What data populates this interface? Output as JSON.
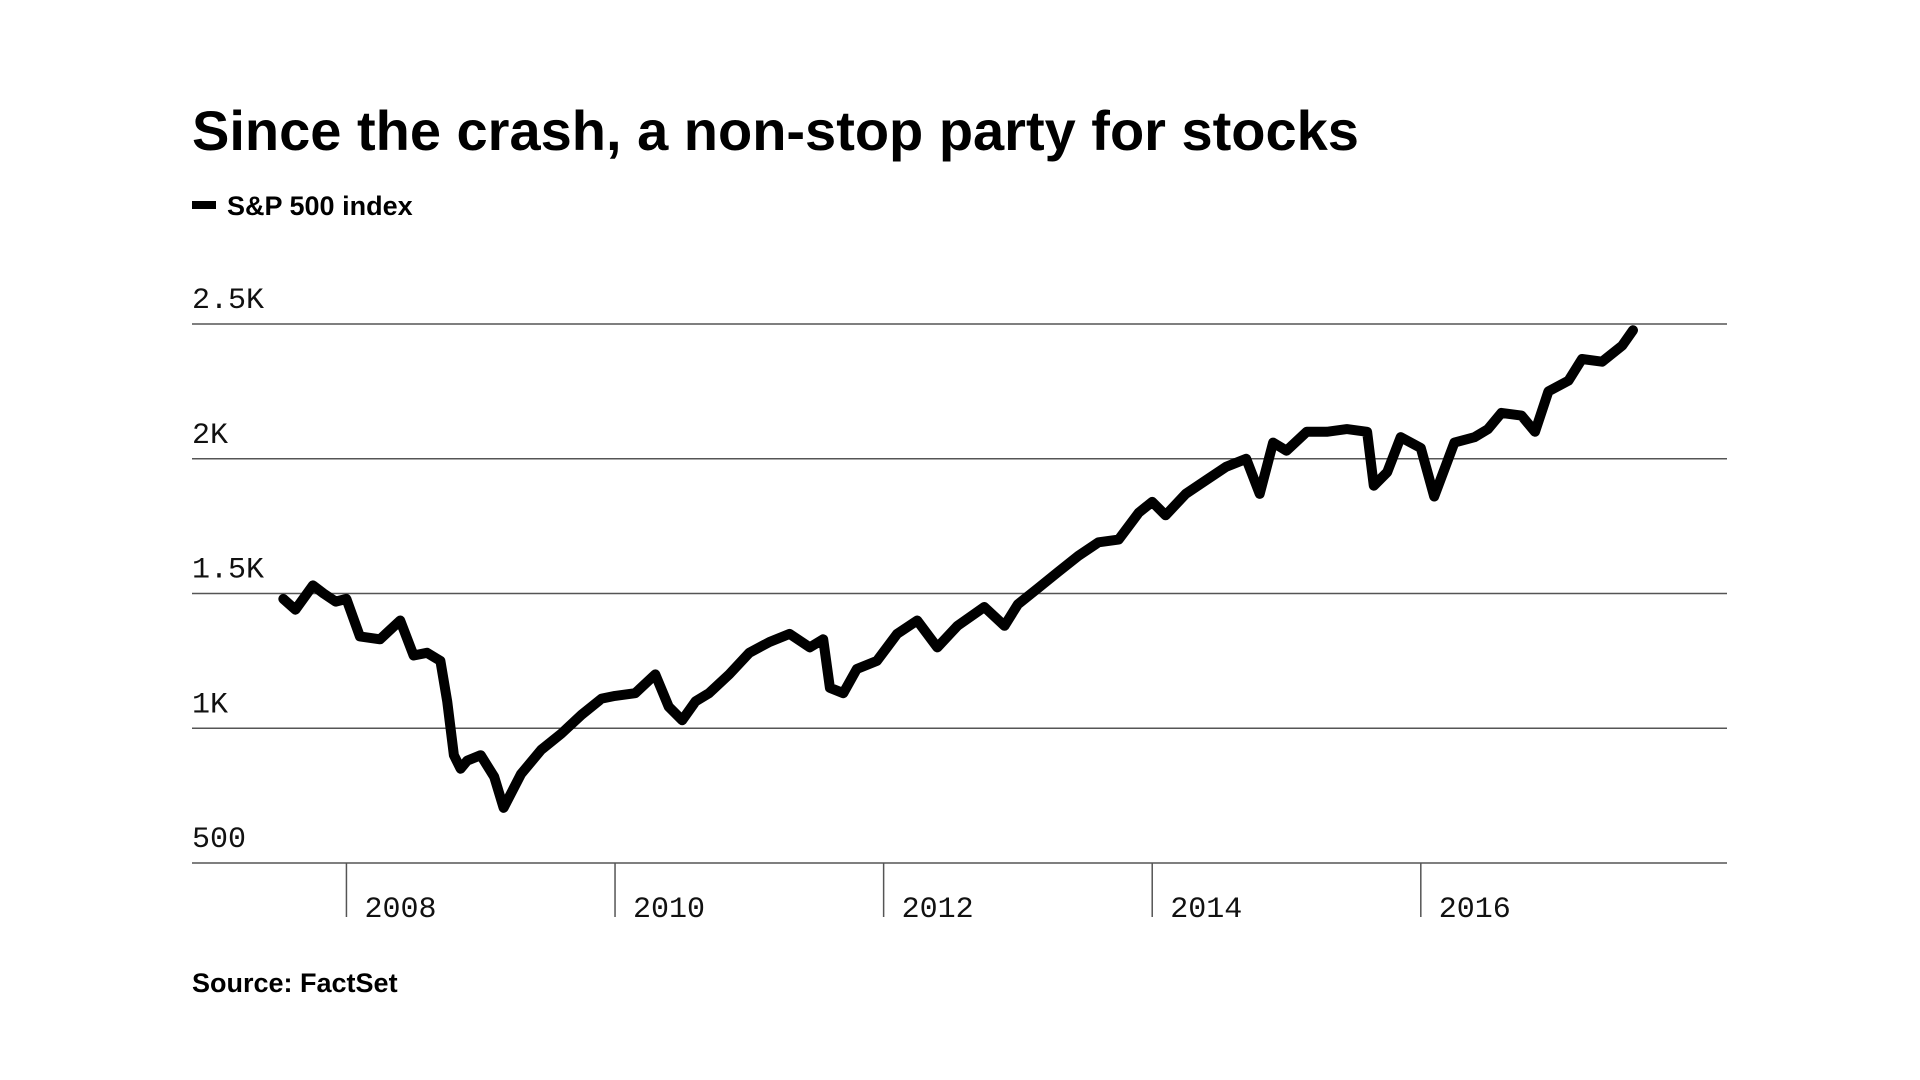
{
  "chart_data": {
    "type": "line",
    "title": "Since the crash, a non-stop party for stocks",
    "source": "Source: FactSet",
    "x": [
      2007.53,
      2007.62,
      2007.75,
      2007.83,
      2007.92,
      2008.0,
      2008.1,
      2008.25,
      2008.4,
      2008.5,
      2008.6,
      2008.7,
      2008.75,
      2008.8,
      2008.85,
      2008.9,
      2009.0,
      2009.1,
      2009.17,
      2009.3,
      2009.45,
      2009.6,
      2009.75,
      2009.9,
      2010.0,
      2010.15,
      2010.3,
      2010.4,
      2010.5,
      2010.6,
      2010.7,
      2010.85,
      2011.0,
      2011.15,
      2011.3,
      2011.45,
      2011.55,
      2011.6,
      2011.7,
      2011.8,
      2011.95,
      2012.1,
      2012.25,
      2012.4,
      2012.55,
      2012.75,
      2012.9,
      2013.0,
      2013.15,
      2013.3,
      2013.45,
      2013.6,
      2013.75,
      2013.9,
      2014.0,
      2014.1,
      2014.25,
      2014.4,
      2014.55,
      2014.7,
      2014.8,
      2014.9,
      2015.0,
      2015.15,
      2015.3,
      2015.45,
      2015.6,
      2015.65,
      2015.75,
      2015.85,
      2016.0,
      2016.1,
      2016.25,
      2016.4,
      2016.5,
      2016.6,
      2016.75,
      2016.85,
      2016.95,
      2017.1,
      2017.2,
      2017.35,
      2017.5,
      2017.58
    ],
    "series": [
      {
        "name": "S&P 500 index",
        "color": "#000000",
        "values": [
          1480,
          1440,
          1530,
          1500,
          1470,
          1480,
          1341,
          1330,
          1400,
          1270,
          1280,
          1250,
          1100,
          900,
          850,
          880,
          900,
          820,
          705,
          830,
          920,
          980,
          1050,
          1110,
          1120,
          1130,
          1200,
          1080,
          1030,
          1100,
          1130,
          1200,
          1280,
          1320,
          1350,
          1300,
          1330,
          1150,
          1130,
          1220,
          1250,
          1350,
          1400,
          1300,
          1380,
          1450,
          1380,
          1460,
          1520,
          1580,
          1640,
          1690,
          1700,
          1800,
          1840,
          1790,
          1870,
          1920,
          1970,
          2000,
          1870,
          2060,
          2030,
          2100,
          2100,
          2110,
          2100,
          1900,
          1950,
          2080,
          2040,
          1860,
          2060,
          2080,
          2110,
          2170,
          2160,
          2100,
          2250,
          2290,
          2370,
          2360,
          2420,
          2477
        ]
      }
    ],
    "xlim": [
      2006.85,
      2018.28
    ],
    "xticks": [
      2008,
      2010,
      2012,
      2014,
      2016
    ],
    "ylim": [
      500,
      2500
    ],
    "yticks": [
      500,
      {
        "value": 1000,
        "label": "1K"
      },
      {
        "value": 1500,
        "label": "1.5K"
      },
      {
        "value": 2000,
        "label": "2K"
      },
      {
        "value": 2500,
        "label": "2.5K"
      }
    ],
    "grid": true
  }
}
